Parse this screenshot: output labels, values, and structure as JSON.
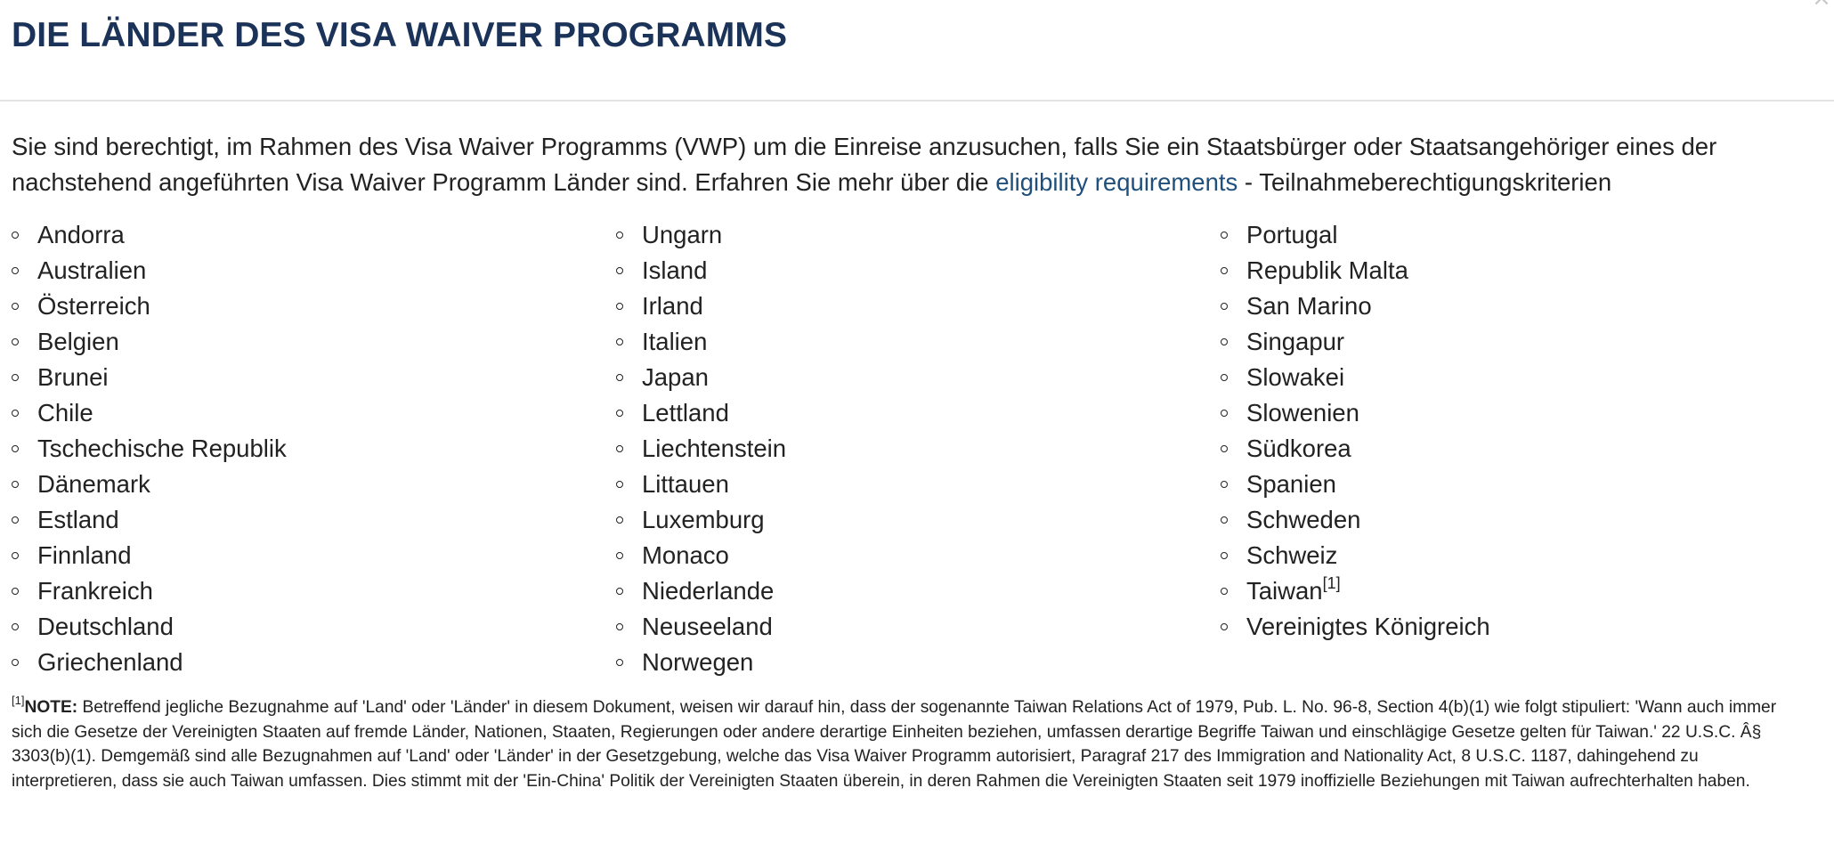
{
  "header": {
    "title": "DIE LÄNDER DES VISA WAIVER PROGRAMMS",
    "close_glyph": "×"
  },
  "intro": {
    "text_before": "Sie sind berechtigt, im Rahmen des Visa Waiver Programms (VWP) um die Einreise anzusuchen, falls Sie ein Staatsbürger oder Staatsangehöriger eines der nachstehend angeführten Visa Waiver Programm Länder sind. Erfahren Sie mehr über die ",
    "link_text": "eligibility requirements",
    "text_after": " - Teilnahmeberechtigungskriterien"
  },
  "countries": {
    "column1": [
      "Andorra",
      "Australien",
      "Österreich",
      "Belgien",
      "Brunei",
      "Chile",
      "Tschechische Republik",
      "Dänemark",
      "Estland",
      "Finnland",
      "Frankreich",
      "Deutschland",
      "Griechenland"
    ],
    "column2": [
      "Ungarn",
      "Island",
      "Irland",
      "Italien",
      "Japan",
      "Lettland",
      "Liechtenstein",
      "Littauen",
      "Luxemburg",
      "Monaco",
      "Niederlande",
      "Neuseeland",
      "Norwegen"
    ],
    "column3": [
      "Portugal",
      "Republik Malta",
      "San Marino",
      "Singapur",
      "Slowakei",
      "Slowenien",
      "Südkorea",
      "Spanien",
      "Schweden",
      "Schweiz",
      "Taiwan",
      "Vereinigtes Königreich"
    ],
    "taiwan_ref": "[1]"
  },
  "note": {
    "ref": "[1]",
    "label": "NOTE:",
    "text": " Betreffend jegliche Bezugnahme auf 'Land' oder 'Länder' in diesem Dokument, weisen wir darauf hin, dass der sogenannte Taiwan Relations Act of 1979, Pub. L. No. 96-8, Section 4(b)(1) wie folgt stipuliert: 'Wann auch immer sich die Gesetze der Vereinigten Staaten auf fremde Länder, Nationen, Staaten, Regierungen oder andere derartige Einheiten beziehen, umfassen derartige Begriffe Taiwan und einschlägige Gesetze gelten für Taiwan.' 22 U.S.C. Â§ 3303(b)(1). Demgemäß sind alle Bezugnahmen auf 'Land' oder 'Länder' in der Gesetzgebung, welche das Visa Waiver Programm autorisiert, Paragraf 217 des Immigration and Nationality Act, 8 U.S.C. 1187, dahingehend zu interpretieren, dass sie auch Taiwan umfassen. Dies stimmt mit der 'Ein-China' Politik der Vereinigten Staaten überein, in deren Rahmen die Vereinigten Staaten seit 1979 inoffizielle Beziehungen mit Taiwan aufrechterhalten haben."
  }
}
